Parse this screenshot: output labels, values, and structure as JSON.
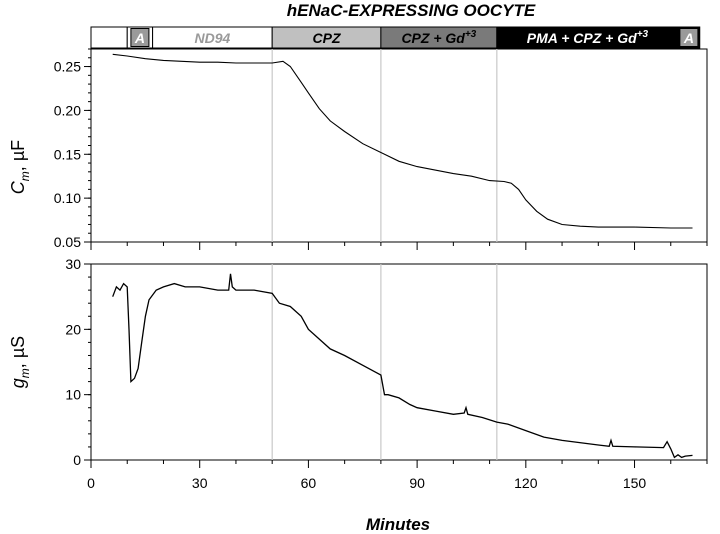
{
  "title": "hENaC-EXPRESSING OOCYTE",
  "colors": {
    "trace": "#000000",
    "divider": "#c8c8c8",
    "seg_white": "#ffffff",
    "seg_lightgray": "#c0c0c0",
    "seg_darkgray": "#7a7a7a",
    "seg_black": "#000000",
    "box_a": "#9a9a9a"
  },
  "treatment_bar": [
    {
      "label": "",
      "x0": 0,
      "x1": 10,
      "fill": "seg_white",
      "text_color": "#000000"
    },
    {
      "label": "A",
      "x0": 10,
      "x1": 17,
      "fill": "seg_white",
      "text_color": "#ffffff",
      "boxed": true
    },
    {
      "label": "ND94",
      "x0": 17,
      "x1": 50,
      "fill": "seg_white",
      "text_color": "#9a9a9a"
    },
    {
      "label": "CPZ",
      "x0": 50,
      "x1": 80,
      "fill": "seg_lightgray",
      "text_color": "#000000"
    },
    {
      "label": "CPZ + Gd",
      "sup": "+3",
      "x0": 80,
      "x1": 112,
      "fill": "seg_darkgray",
      "text_color": "#000000"
    },
    {
      "label": "PMA + CPZ + Gd",
      "sup": "+3",
      "x0": 112,
      "x1": 162,
      "fill": "seg_black",
      "text_color": "#ffffff"
    },
    {
      "label": "A",
      "x0": 162,
      "x1": 168,
      "fill": "seg_black",
      "text_color": "#ffffff",
      "boxed": true
    }
  ],
  "dividers_min": [
    50,
    80,
    112
  ],
  "xaxis": {
    "label": "Minutes",
    "range": [
      0,
      170
    ],
    "ticks": [
      0,
      30,
      60,
      90,
      120,
      150
    ],
    "tick_labels": [
      "0",
      "30",
      "60",
      "90",
      "120",
      "150"
    ]
  },
  "chart_data": [
    {
      "type": "line",
      "panel": "top",
      "ylabel": {
        "base": "C",
        "sub": "m",
        "unit": ", µF"
      },
      "ylim": [
        0.05,
        0.27
      ],
      "yticks": [
        0.05,
        0.1,
        0.15,
        0.2,
        0.25
      ],
      "ytick_labels": [
        "0.05",
        "0.10",
        "0.15",
        "0.20",
        "0.25"
      ],
      "x": [
        6,
        10,
        15,
        20,
        25,
        30,
        35,
        40,
        45,
        50,
        53,
        55,
        58,
        60,
        63,
        66,
        70,
        75,
        80,
        85,
        90,
        95,
        100,
        105,
        110,
        114,
        116,
        118,
        120,
        123,
        126,
        130,
        135,
        140,
        150,
        160,
        166
      ],
      "y": [
        0.264,
        0.262,
        0.259,
        0.257,
        0.256,
        0.255,
        0.255,
        0.254,
        0.254,
        0.254,
        0.256,
        0.25,
        0.232,
        0.22,
        0.202,
        0.188,
        0.176,
        0.162,
        0.152,
        0.142,
        0.136,
        0.132,
        0.128,
        0.125,
        0.12,
        0.119,
        0.117,
        0.11,
        0.098,
        0.085,
        0.076,
        0.07,
        0.068,
        0.067,
        0.067,
        0.066,
        0.066
      ]
    },
    {
      "type": "line",
      "panel": "bottom",
      "ylabel": {
        "base": "g",
        "sub": "m",
        "unit": ", µS"
      },
      "ylim": [
        0,
        30
      ],
      "yticks": [
        0,
        10,
        20,
        30
      ],
      "ytick_labels": [
        "0",
        "10",
        "20",
        "30"
      ],
      "x": [
        6,
        7,
        8,
        9,
        10,
        10.5,
        11,
        12,
        13,
        14,
        15,
        16,
        18,
        20,
        23,
        26,
        30,
        35,
        38,
        38.5,
        39,
        40,
        45,
        50,
        52,
        55,
        58,
        60,
        63,
        66,
        70,
        75,
        80,
        81,
        82,
        85,
        88,
        90,
        95,
        100,
        103,
        103.5,
        104,
        108,
        112,
        115,
        120,
        125,
        130,
        140,
        143,
        143.5,
        144,
        150,
        158,
        159,
        160,
        161,
        162,
        163,
        164,
        166
      ],
      "y": [
        25,
        26.5,
        26,
        27,
        26.5,
        20,
        12,
        12.5,
        14,
        18,
        22,
        24.5,
        26,
        26.5,
        27,
        26.5,
        26.5,
        26,
        26,
        28.5,
        26.5,
        26,
        26,
        25.5,
        24,
        23.5,
        22,
        20,
        18.5,
        17,
        16,
        14.5,
        13,
        10,
        10,
        9.5,
        8.5,
        8,
        7.5,
        7,
        7.2,
        8,
        7,
        6.5,
        5.8,
        5.5,
        4.5,
        3.5,
        3,
        2.3,
        2.1,
        3,
        2.1,
        2,
        1.9,
        2.8,
        1.7,
        0.4,
        0.8,
        0.4,
        0.6,
        0.7
      ]
    }
  ]
}
